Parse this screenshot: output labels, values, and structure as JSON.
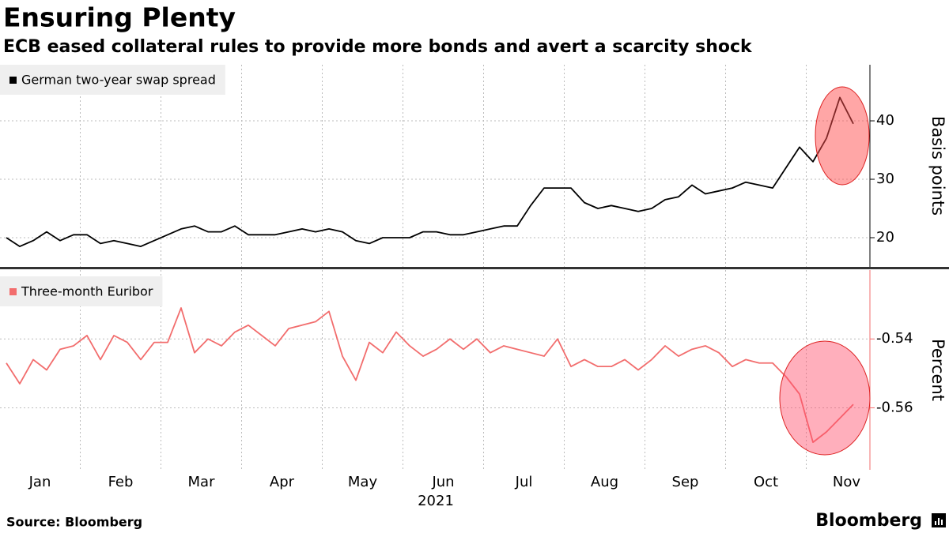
{
  "header": {
    "title": "Ensuring Plenty",
    "subtitle": "ECB eased collateral rules to provide more bonds and avert a scarcity shock"
  },
  "footer": {
    "source": "Source: Bloomberg",
    "brand": "Bloomberg"
  },
  "chart_data": [
    {
      "type": "line",
      "ylabel": "Basis points",
      "categories": [
        "Jan",
        null,
        null,
        null,
        null,
        null,
        "Feb",
        null,
        null,
        null,
        null,
        null,
        "Mar",
        null,
        null,
        null,
        null,
        null,
        "Apr",
        null,
        null,
        null,
        null,
        null,
        "May",
        null,
        null,
        null,
        null,
        null,
        "Jun",
        null,
        null,
        null,
        null,
        null,
        "Jul",
        null,
        null,
        null,
        null,
        null,
        "Aug",
        null,
        null,
        null,
        null,
        null,
        "Sep",
        null,
        null,
        null,
        null,
        null,
        "Oct",
        null,
        null,
        null,
        null,
        null,
        "Nov",
        null,
        null,
        null
      ],
      "series": [
        {
          "name": "German two-year swap spread",
          "color": "#000000",
          "values": [
            20,
            18.5,
            19.5,
            21,
            19.5,
            20.5,
            20.5,
            19,
            19.5,
            19,
            18.5,
            19.5,
            20.5,
            21.5,
            22,
            21,
            21,
            22,
            20.5,
            20.5,
            20.5,
            21,
            21.5,
            21,
            21.5,
            21,
            19.5,
            19,
            20,
            20,
            20,
            21,
            21,
            20.5,
            20.5,
            21,
            21.5,
            22,
            22,
            25.5,
            28.5,
            28.5,
            28.5,
            26,
            25,
            25.5,
            25,
            24.5,
            25,
            26.5,
            27,
            29,
            27.5,
            28,
            28.5,
            29.5,
            29,
            28.5,
            32,
            35.5,
            33,
            37,
            44,
            39.5
          ]
        }
      ],
      "ylim": [
        15,
        49.6
      ],
      "yticks": [
        20,
        30,
        40
      ],
      "grid": true,
      "legend": "top-left"
    },
    {
      "type": "line",
      "ylabel": "Percent",
      "xlabel": "2021",
      "categories": [
        "Jan",
        null,
        null,
        null,
        null,
        null,
        "Feb",
        null,
        null,
        null,
        null,
        null,
        "Mar",
        null,
        null,
        null,
        null,
        null,
        "Apr",
        null,
        null,
        null,
        null,
        null,
        "May",
        null,
        null,
        null,
        null,
        null,
        "Jun",
        null,
        null,
        null,
        null,
        null,
        "Jul",
        null,
        null,
        null,
        null,
        null,
        "Aug",
        null,
        null,
        null,
        null,
        null,
        "Sep",
        null,
        null,
        null,
        null,
        null,
        "Oct",
        null,
        null,
        null,
        null,
        null,
        "Nov",
        null,
        null,
        null
      ],
      "series": [
        {
          "name": "Three-month Euribor",
          "color": "#f26d6d",
          "values": [
            -0.547,
            -0.553,
            -0.546,
            -0.549,
            -0.543,
            -0.542,
            -0.539,
            -0.546,
            -0.539,
            -0.541,
            -0.546,
            -0.541,
            -0.541,
            -0.531,
            -0.544,
            -0.54,
            -0.542,
            -0.538,
            -0.536,
            -0.539,
            -0.542,
            -0.537,
            -0.536,
            -0.535,
            -0.532,
            -0.545,
            -0.552,
            -0.541,
            -0.544,
            -0.538,
            -0.542,
            -0.545,
            -0.543,
            -0.54,
            -0.543,
            -0.54,
            -0.544,
            -0.542,
            -0.543,
            -0.544,
            -0.545,
            -0.54,
            -0.548,
            -0.546,
            -0.548,
            -0.548,
            -0.546,
            -0.549,
            -0.546,
            -0.542,
            -0.545,
            -0.543,
            -0.542,
            -0.544,
            -0.548,
            -0.546,
            -0.547,
            -0.547,
            -0.551,
            -0.556,
            -0.57,
            -0.567,
            -0.563,
            -0.559
          ]
        }
      ],
      "ylim": [
        -0.578,
        -0.52
      ],
      "yticks": [
        -0.54,
        -0.56
      ],
      "grid": true,
      "legend": "top-left"
    }
  ]
}
